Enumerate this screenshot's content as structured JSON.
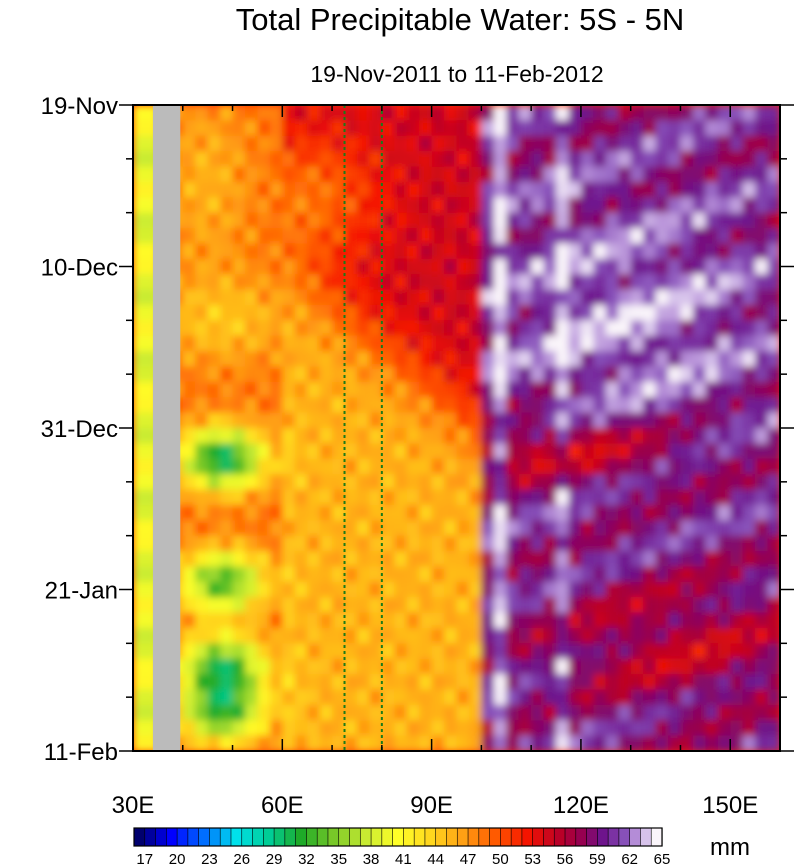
{
  "chart_data": {
    "type": "heatmap",
    "title": "Total Precipitable Water: 5S - 5N",
    "subtitle": "19-Nov-2011 to 11-Feb-2012",
    "x_range": [
      30,
      160
    ],
    "x_unit": "degrees E longitude",
    "x_ticks": [
      {
        "value": 30,
        "label": "30E"
      },
      {
        "value": 60,
        "label": "60E"
      },
      {
        "value": 90,
        "label": "90E"
      },
      {
        "value": 120,
        "label": "120E"
      },
      {
        "value": 150,
        "label": "150E"
      }
    ],
    "y_range_days": [
      0,
      84
    ],
    "y_ticks": [
      {
        "day": 0,
        "label": "19-Nov"
      },
      {
        "day": 21,
        "label": "10-Dec"
      },
      {
        "day": 42,
        "label": "31-Dec"
      },
      {
        "day": 63,
        "label": "21-Jan"
      },
      {
        "day": 84,
        "label": "11-Feb"
      }
    ],
    "reference_lines_lon": [
      72.5,
      80
    ],
    "land_mask": {
      "lon_min": 34,
      "lon_max": 39.5,
      "color": "#bbbbbb"
    },
    "colorbar": {
      "unit": "mm",
      "levels": [
        17,
        18,
        19,
        20,
        21,
        22,
        23,
        24,
        25,
        26,
        27,
        28,
        29,
        30,
        31,
        32,
        33,
        34,
        35,
        36,
        37,
        38,
        39,
        40,
        41,
        42,
        43,
        44,
        45,
        46,
        47,
        48,
        49,
        50,
        51,
        52,
        53,
        54,
        55,
        56,
        57,
        58,
        59,
        60,
        61,
        62,
        63,
        64,
        65
      ],
      "labels": [
        "17",
        "20",
        "23",
        "26",
        "29",
        "32",
        "35",
        "38",
        "41",
        "44",
        "47",
        "50",
        "53",
        "56",
        "59",
        "62",
        "65"
      ]
    },
    "field_description_lonmin_lonmax_daymin_daymax_mm": [
      [
        30,
        34,
        0,
        84,
        40
      ],
      [
        40,
        60,
        0,
        84,
        46
      ],
      [
        60,
        100,
        0,
        30,
        51
      ],
      [
        100,
        160,
        0,
        20,
        60
      ],
      [
        100,
        160,
        20,
        40,
        61
      ],
      [
        60,
        100,
        40,
        84,
        44
      ],
      [
        100,
        160,
        40,
        84,
        54
      ]
    ],
    "dry_anomalies_day_mm": [
      {
        "day": 46,
        "mm": 28
      },
      {
        "day": 62,
        "mm": 31
      },
      {
        "day": 73,
        "mm": 30
      },
      {
        "day": 79,
        "mm": 31
      }
    ]
  }
}
